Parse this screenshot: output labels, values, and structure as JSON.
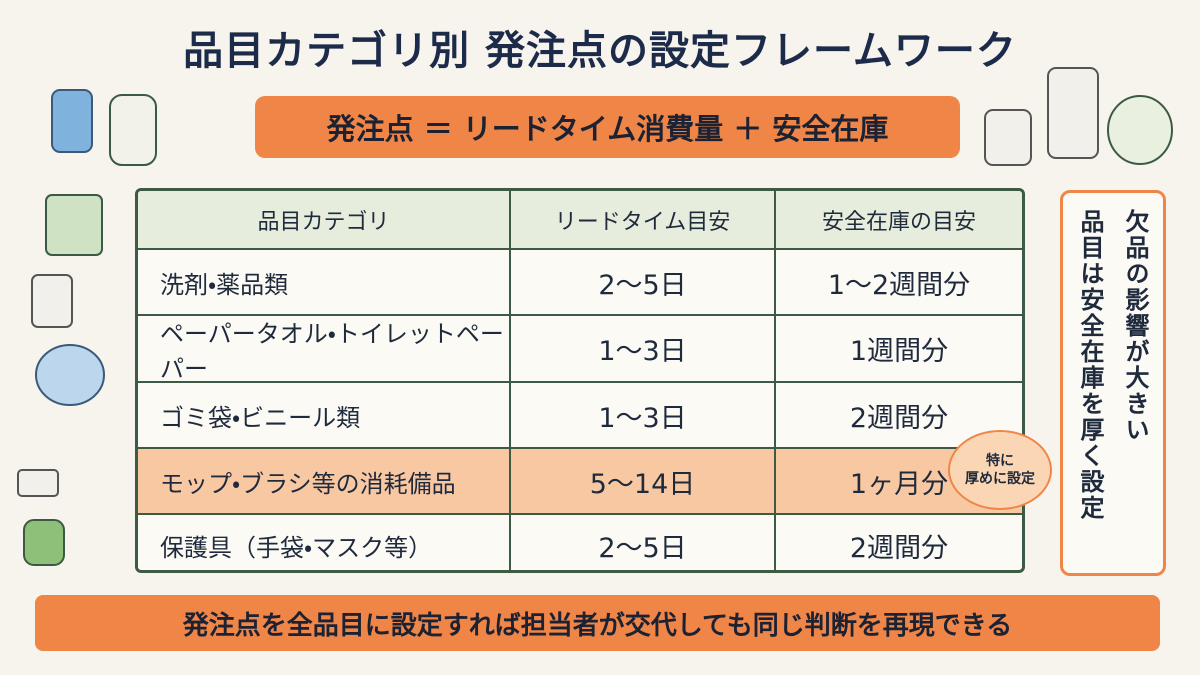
{
  "title": "品目カテゴリ別 発注点の設定フレームワーク",
  "formula": "発注点 ＝ リードタイム消費量 ＋ 安全在庫",
  "table": {
    "headers": [
      "品目カテゴリ",
      "リードタイム目安",
      "安全在庫の目安"
    ],
    "rows": [
      [
        "洗剤・薬品類",
        "2～5日",
        "1～2週間分"
      ],
      [
        "ペーパータオル・トイレットペーパー",
        "1～3日",
        "1週間分"
      ],
      [
        "ゴミ袋・ビニール類",
        "1～3日",
        "2週間分"
      ],
      [
        "モップ・ブラシ等の消耗備品",
        "5～14日",
        "1ヶ月分"
      ],
      [
        "保護具（手袋・マスク等）",
        "2～5日",
        "2週間分"
      ]
    ]
  },
  "badge": {
    "lines": [
      "特に",
      "厚めに設定"
    ]
  },
  "side_note": {
    "lines": [
      "欠品の影響が大きい",
      "品目は安全在庫を厚く設定"
    ]
  },
  "footer": "発注点を全品目に設定すれば担当者が交代しても同じ判断を再現できる"
}
